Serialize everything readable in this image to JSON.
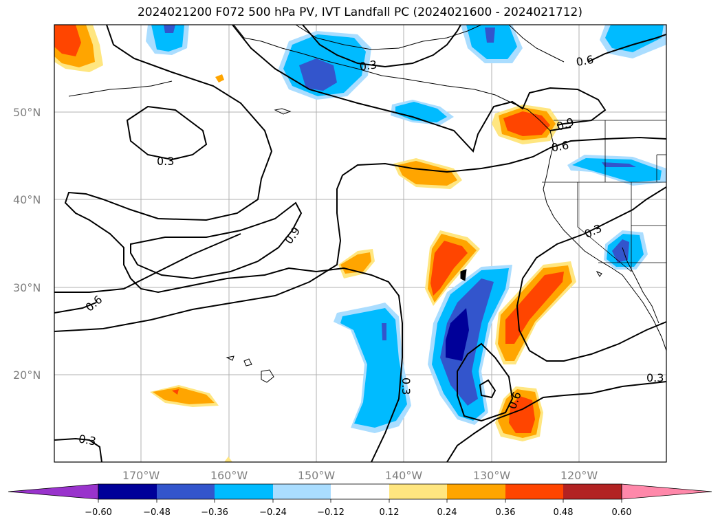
{
  "title": "2024021200 F072 500 hPa PV, IVT Landfall PC (2024021600 - 2024021712)",
  "lat_labels": [
    "50°N",
    "40°N",
    "30°N",
    "20°N"
  ],
  "lon_labels": [
    "170°W",
    "160°W",
    "150°W",
    "140°W",
    "130°W",
    "120°W"
  ],
  "contour_labels": [
    "0.3",
    "0.6",
    "0.9",
    "0.3",
    "0.6",
    "0.9",
    "0.6",
    "0.3",
    "0.3",
    "0.6",
    "0.3",
    "0.6",
    "0.3"
  ],
  "colorbar": {
    "ticks": [
      "−0.60",
      "−0.48",
      "−0.36",
      "−0.24",
      "−0.12",
      "0.12",
      "0.24",
      "0.36",
      "0.48",
      "0.60"
    ],
    "colors": [
      "#9933cc",
      "#000099",
      "#3355cc",
      "#00bbff",
      "#aaddff",
      "#ffffff",
      "#ffe680",
      "#ffa500",
      "#ff4500",
      "#b22222",
      "#ff88aa"
    ]
  }
}
